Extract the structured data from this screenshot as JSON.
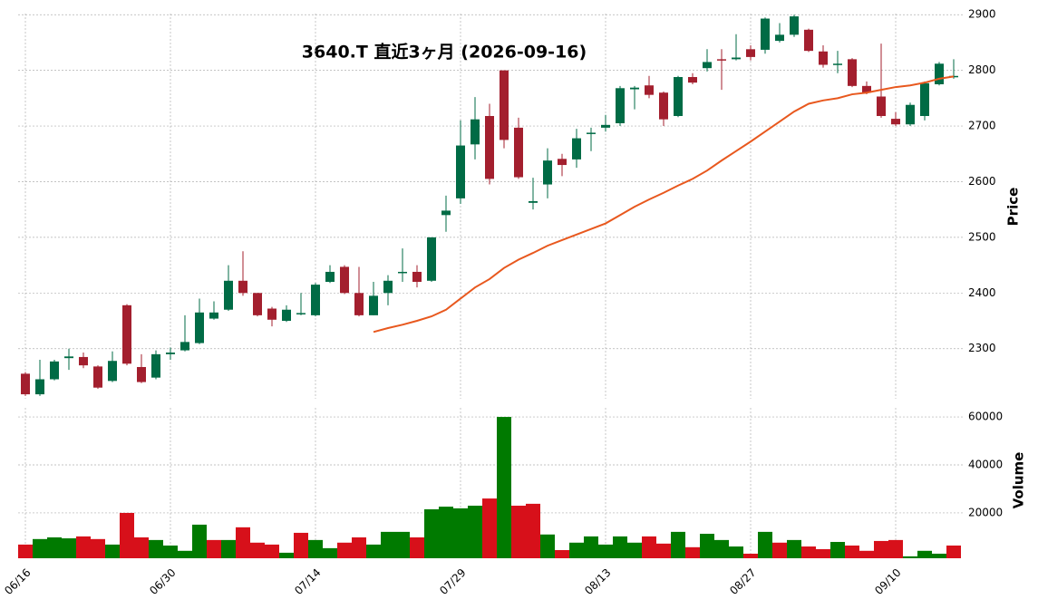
{
  "chart_data": {
    "type": "candlestick",
    "title": "3640.T 直近3ヶ月 (2026-09-16)",
    "ylabel": "Price",
    "categories": [
      "06/16",
      null,
      null,
      null,
      null,
      null,
      null,
      null,
      null,
      null,
      "06/30",
      null,
      null,
      null,
      null,
      null,
      null,
      null,
      null,
      null,
      "07/14",
      null,
      null,
      null,
      null,
      null,
      null,
      null,
      null,
      null,
      "07/29",
      null,
      null,
      null,
      null,
      null,
      null,
      null,
      null,
      null,
      "08/13",
      null,
      null,
      null,
      null,
      null,
      null,
      null,
      null,
      null,
      "08/27",
      null,
      null,
      null,
      null,
      null,
      null,
      null,
      null,
      null,
      "09/10",
      null,
      null,
      null,
      null
    ],
    "open": [
      2255,
      2218,
      2245,
      2283,
      2285,
      2268,
      2242,
      2378,
      2267,
      2248,
      2290,
      2297,
      2310,
      2354,
      2370,
      2422,
      2400,
      2372,
      2350,
      2362,
      2360,
      2420,
      2447,
      2400,
      2360,
      2400,
      2436,
      2438,
      2422,
      2540,
      2570,
      2667,
      2718,
      2800,
      2697,
      2562,
      2595,
      2641,
      2640,
      2686,
      2697,
      2705,
      2766,
      2773,
      2760,
      2718,
      2788,
      2804,
      2820,
      2820,
      2838,
      2837,
      2853,
      2864,
      2873,
      2834,
      2810,
      2820,
      2772,
      2753,
      2713,
      2703,
      2718,
      2775,
      2788
    ],
    "high": [
      2258,
      2280,
      2280,
      2300,
      2293,
      2270,
      2295,
      2380,
      2290,
      2297,
      2302,
      2360,
      2390,
      2385,
      2450,
      2475,
      2400,
      2375,
      2378,
      2400,
      2418,
      2450,
      2450,
      2447,
      2420,
      2432,
      2480,
      2450,
      2500,
      2575,
      2710,
      2752,
      2740,
      2800,
      2715,
      2607,
      2660,
      2650,
      2695,
      2697,
      2720,
      2772,
      2772,
      2790,
      2762,
      2790,
      2795,
      2838,
      2838,
      2865,
      2845,
      2895,
      2885,
      2900,
      2875,
      2845,
      2835,
      2822,
      2780,
      2848,
      2725,
      2742,
      2780,
      2815,
      2820
    ],
    "low": [
      2215,
      2215,
      2243,
      2262,
      2265,
      2228,
      2240,
      2270,
      2238,
      2245,
      2280,
      2295,
      2308,
      2352,
      2368,
      2395,
      2358,
      2340,
      2348,
      2360,
      2358,
      2418,
      2398,
      2358,
      2360,
      2378,
      2420,
      2410,
      2420,
      2510,
      2560,
      2640,
      2595,
      2660,
      2605,
      2550,
      2570,
      2610,
      2625,
      2655,
      2690,
      2700,
      2730,
      2750,
      2700,
      2716,
      2775,
      2798,
      2765,
      2818,
      2818,
      2830,
      2850,
      2860,
      2833,
      2805,
      2795,
      2770,
      2757,
      2715,
      2700,
      2700,
      2710,
      2773,
      2785
    ],
    "close": [
      2218,
      2245,
      2277,
      2286,
      2270,
      2230,
      2278,
      2273,
      2240,
      2290,
      2293,
      2312,
      2365,
      2365,
      2422,
      2400,
      2360,
      2352,
      2370,
      2364,
      2415,
      2438,
      2400,
      2360,
      2395,
      2422,
      2438,
      2420,
      2500,
      2548,
      2665,
      2712,
      2605,
      2675,
      2608,
      2565,
      2638,
      2630,
      2678,
      2688,
      2702,
      2768,
      2769,
      2756,
      2712,
      2788,
      2778,
      2815,
      2818,
      2823,
      2824,
      2893,
      2864,
      2897,
      2835,
      2810,
      2812,
      2772,
      2760,
      2718,
      2703,
      2738,
      2777,
      2812,
      2790
    ],
    "up_color": "#006b45",
    "down_color": "#a31f2e",
    "ma": {
      "color": "#e8581e",
      "values": [
        null,
        null,
        null,
        null,
        null,
        null,
        null,
        null,
        null,
        null,
        null,
        null,
        null,
        null,
        null,
        null,
        null,
        null,
        null,
        null,
        null,
        null,
        null,
        null,
        2330,
        2337,
        2343,
        2350,
        2358,
        2370,
        2390,
        2410,
        2425,
        2445,
        2460,
        2472,
        2485,
        2495,
        2505,
        2515,
        2525,
        2540,
        2555,
        2568,
        2580,
        2593,
        2605,
        2620,
        2638,
        2655,
        2672,
        2690,
        2708,
        2726,
        2740,
        2746,
        2750,
        2757,
        2760,
        2765,
        2770,
        2773,
        2778,
        2785,
        2789
      ]
    },
    "ylim": [
      2210,
      2902
    ],
    "yticks": [
      2300,
      2400,
      2500,
      2600,
      2700,
      2800,
      2900
    ],
    "grid": true,
    "volume": {
      "ylabel": "Volume",
      "ylim": [
        1100,
        63800
      ],
      "yticks": [
        20000,
        40000,
        60000
      ],
      "values": [
        6800,
        9100,
        9800,
        9400,
        10200,
        9100,
        6800,
        20000,
        9800,
        8700,
        6400,
        4200,
        15100,
        8700,
        8700,
        14000,
        7600,
        6800,
        3400,
        11700,
        8700,
        5300,
        7600,
        9800,
        6800,
        12100,
        12100,
        9800,
        21500,
        22600,
        21900,
        23000,
        26000,
        60000,
        23000,
        23800,
        11000,
        4500,
        7600,
        10200,
        6800,
        10200,
        7600,
        10200,
        7200,
        12100,
        5700,
        11300,
        8700,
        6000,
        3000,
        12100,
        7600,
        8700,
        6000,
        4900,
        7900,
        6400,
        4200,
        8300,
        8700,
        1900,
        4200,
        3000,
        6400
      ],
      "colors": [
        "#d7101a",
        "#007a00",
        "#007a00",
        "#007a00",
        "#d7101a",
        "#d7101a",
        "#007a00",
        "#d7101a",
        "#d7101a",
        "#007a00",
        "#007a00",
        "#007a00",
        "#007a00",
        "#d7101a",
        "#007a00",
        "#d7101a",
        "#d7101a",
        "#d7101a",
        "#007a00",
        "#d7101a",
        "#007a00",
        "#007a00",
        "#d7101a",
        "#d7101a",
        "#007a00",
        "#007a00",
        "#007a00",
        "#d7101a",
        "#007a00",
        "#007a00",
        "#007a00",
        "#007a00",
        "#d7101a",
        "#007a00",
        "#d7101a",
        "#d7101a",
        "#007a00",
        "#d7101a",
        "#007a00",
        "#007a00",
        "#007a00",
        "#007a00",
        "#007a00",
        "#d7101a",
        "#d7101a",
        "#007a00",
        "#d7101a",
        "#007a00",
        "#007a00",
        "#007a00",
        "#d7101a",
        "#007a00",
        "#d7101a",
        "#007a00",
        "#d7101a",
        "#d7101a",
        "#007a00",
        "#d7101a",
        "#d7101a",
        "#d7101a",
        "#d7101a",
        "#007a00",
        "#007a00",
        "#007a00",
        "#d7101a"
      ]
    }
  }
}
